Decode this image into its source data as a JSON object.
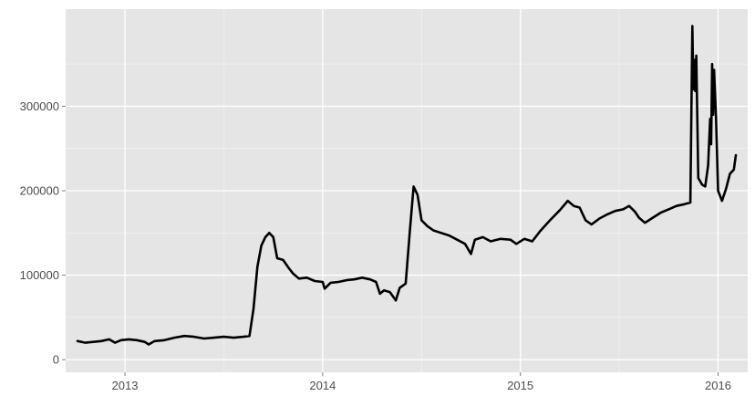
{
  "chart_data": {
    "type": "line",
    "title": "",
    "xlabel": "",
    "ylabel": "",
    "xlim": [
      2012.7,
      2016.15
    ],
    "ylim": [
      -15000,
      415000
    ],
    "grid": true,
    "legend": "none",
    "colors": {
      "panel": "#e5e5e5",
      "grid_major": "#ffffff",
      "line": "#000000",
      "tick_text": "#4d4d4d",
      "tick_mark": "#7f7f7f"
    },
    "x_ticks": [
      {
        "value": 2013,
        "label": "2013"
      },
      {
        "value": 2014,
        "label": "2014"
      },
      {
        "value": 2015,
        "label": "2015"
      },
      {
        "value": 2016,
        "label": "2016"
      }
    ],
    "y_ticks": [
      {
        "value": 0,
        "label": "0"
      },
      {
        "value": 100000,
        "label": "100000"
      },
      {
        "value": 200000,
        "label": "200000"
      },
      {
        "value": 300000,
        "label": "300000"
      }
    ],
    "series": [
      {
        "values": [
          [
            2012.76,
            22000
          ],
          [
            2012.8,
            20000
          ],
          [
            2012.84,
            21000
          ],
          [
            2012.88,
            22000
          ],
          [
            2012.92,
            24000
          ],
          [
            2012.95,
            20000
          ],
          [
            2012.98,
            23000
          ],
          [
            2013.02,
            24000
          ],
          [
            2013.06,
            23000
          ],
          [
            2013.1,
            21000
          ],
          [
            2013.12,
            18000
          ],
          [
            2013.15,
            22000
          ],
          [
            2013.2,
            23000
          ],
          [
            2013.25,
            26000
          ],
          [
            2013.3,
            28000
          ],
          [
            2013.35,
            27000
          ],
          [
            2013.4,
            25000
          ],
          [
            2013.45,
            26000
          ],
          [
            2013.5,
            27000
          ],
          [
            2013.55,
            26000
          ],
          [
            2013.6,
            27000
          ],
          [
            2013.63,
            28000
          ],
          [
            2013.65,
            60000
          ],
          [
            2013.67,
            110000
          ],
          [
            2013.69,
            135000
          ],
          [
            2013.71,
            145000
          ],
          [
            2013.73,
            150000
          ],
          [
            2013.75,
            145000
          ],
          [
            2013.77,
            120000
          ],
          [
            2013.8,
            118000
          ],
          [
            2013.83,
            108000
          ],
          [
            2013.85,
            102000
          ],
          [
            2013.88,
            96000
          ],
          [
            2013.92,
            97000
          ],
          [
            2013.96,
            93000
          ],
          [
            2014.0,
            92000
          ],
          [
            2014.01,
            84000
          ],
          [
            2014.04,
            91000
          ],
          [
            2014.08,
            92000
          ],
          [
            2014.12,
            94000
          ],
          [
            2014.16,
            95000
          ],
          [
            2014.2,
            97000
          ],
          [
            2014.24,
            95000
          ],
          [
            2014.27,
            92000
          ],
          [
            2014.29,
            78000
          ],
          [
            2014.31,
            82000
          ],
          [
            2014.34,
            80000
          ],
          [
            2014.37,
            70000
          ],
          [
            2014.39,
            85000
          ],
          [
            2014.42,
            90000
          ],
          [
            2014.44,
            150000
          ],
          [
            2014.46,
            205000
          ],
          [
            2014.48,
            195000
          ],
          [
            2014.5,
            165000
          ],
          [
            2014.53,
            158000
          ],
          [
            2014.56,
            153000
          ],
          [
            2014.6,
            150000
          ],
          [
            2014.64,
            147000
          ],
          [
            2014.68,
            142000
          ],
          [
            2014.72,
            137000
          ],
          [
            2014.75,
            125000
          ],
          [
            2014.77,
            142000
          ],
          [
            2014.81,
            145000
          ],
          [
            2014.85,
            140000
          ],
          [
            2014.9,
            143000
          ],
          [
            2014.95,
            142000
          ],
          [
            2014.98,
            137000
          ],
          [
            2015.02,
            143000
          ],
          [
            2015.06,
            140000
          ],
          [
            2015.1,
            152000
          ],
          [
            2015.15,
            165000
          ],
          [
            2015.2,
            177000
          ],
          [
            2015.24,
            188000
          ],
          [
            2015.27,
            182000
          ],
          [
            2015.3,
            180000
          ],
          [
            2015.33,
            165000
          ],
          [
            2015.36,
            160000
          ],
          [
            2015.4,
            167000
          ],
          [
            2015.44,
            172000
          ],
          [
            2015.48,
            176000
          ],
          [
            2015.52,
            178000
          ],
          [
            2015.55,
            182000
          ],
          [
            2015.58,
            175000
          ],
          [
            2015.6,
            168000
          ],
          [
            2015.63,
            162000
          ],
          [
            2015.67,
            168000
          ],
          [
            2015.71,
            174000
          ],
          [
            2015.75,
            178000
          ],
          [
            2015.79,
            182000
          ],
          [
            2015.83,
            184000
          ],
          [
            2015.86,
            186000
          ],
          [
            2015.87,
            395000
          ],
          [
            2015.875,
            320000
          ],
          [
            2015.88,
            355000
          ],
          [
            2015.885,
            318000
          ],
          [
            2015.89,
            360000
          ],
          [
            2015.9,
            215000
          ],
          [
            2015.92,
            207000
          ],
          [
            2015.935,
            205000
          ],
          [
            2015.95,
            230000
          ],
          [
            2015.96,
            285000
          ],
          [
            2015.965,
            255000
          ],
          [
            2015.97,
            350000
          ],
          [
            2015.975,
            290000
          ],
          [
            2015.98,
            343000
          ],
          [
            2015.99,
            285000
          ],
          [
            2016.0,
            200000
          ],
          [
            2016.02,
            188000
          ],
          [
            2016.04,
            202000
          ],
          [
            2016.06,
            220000
          ],
          [
            2016.08,
            225000
          ],
          [
            2016.09,
            242000
          ]
        ]
      }
    ]
  }
}
